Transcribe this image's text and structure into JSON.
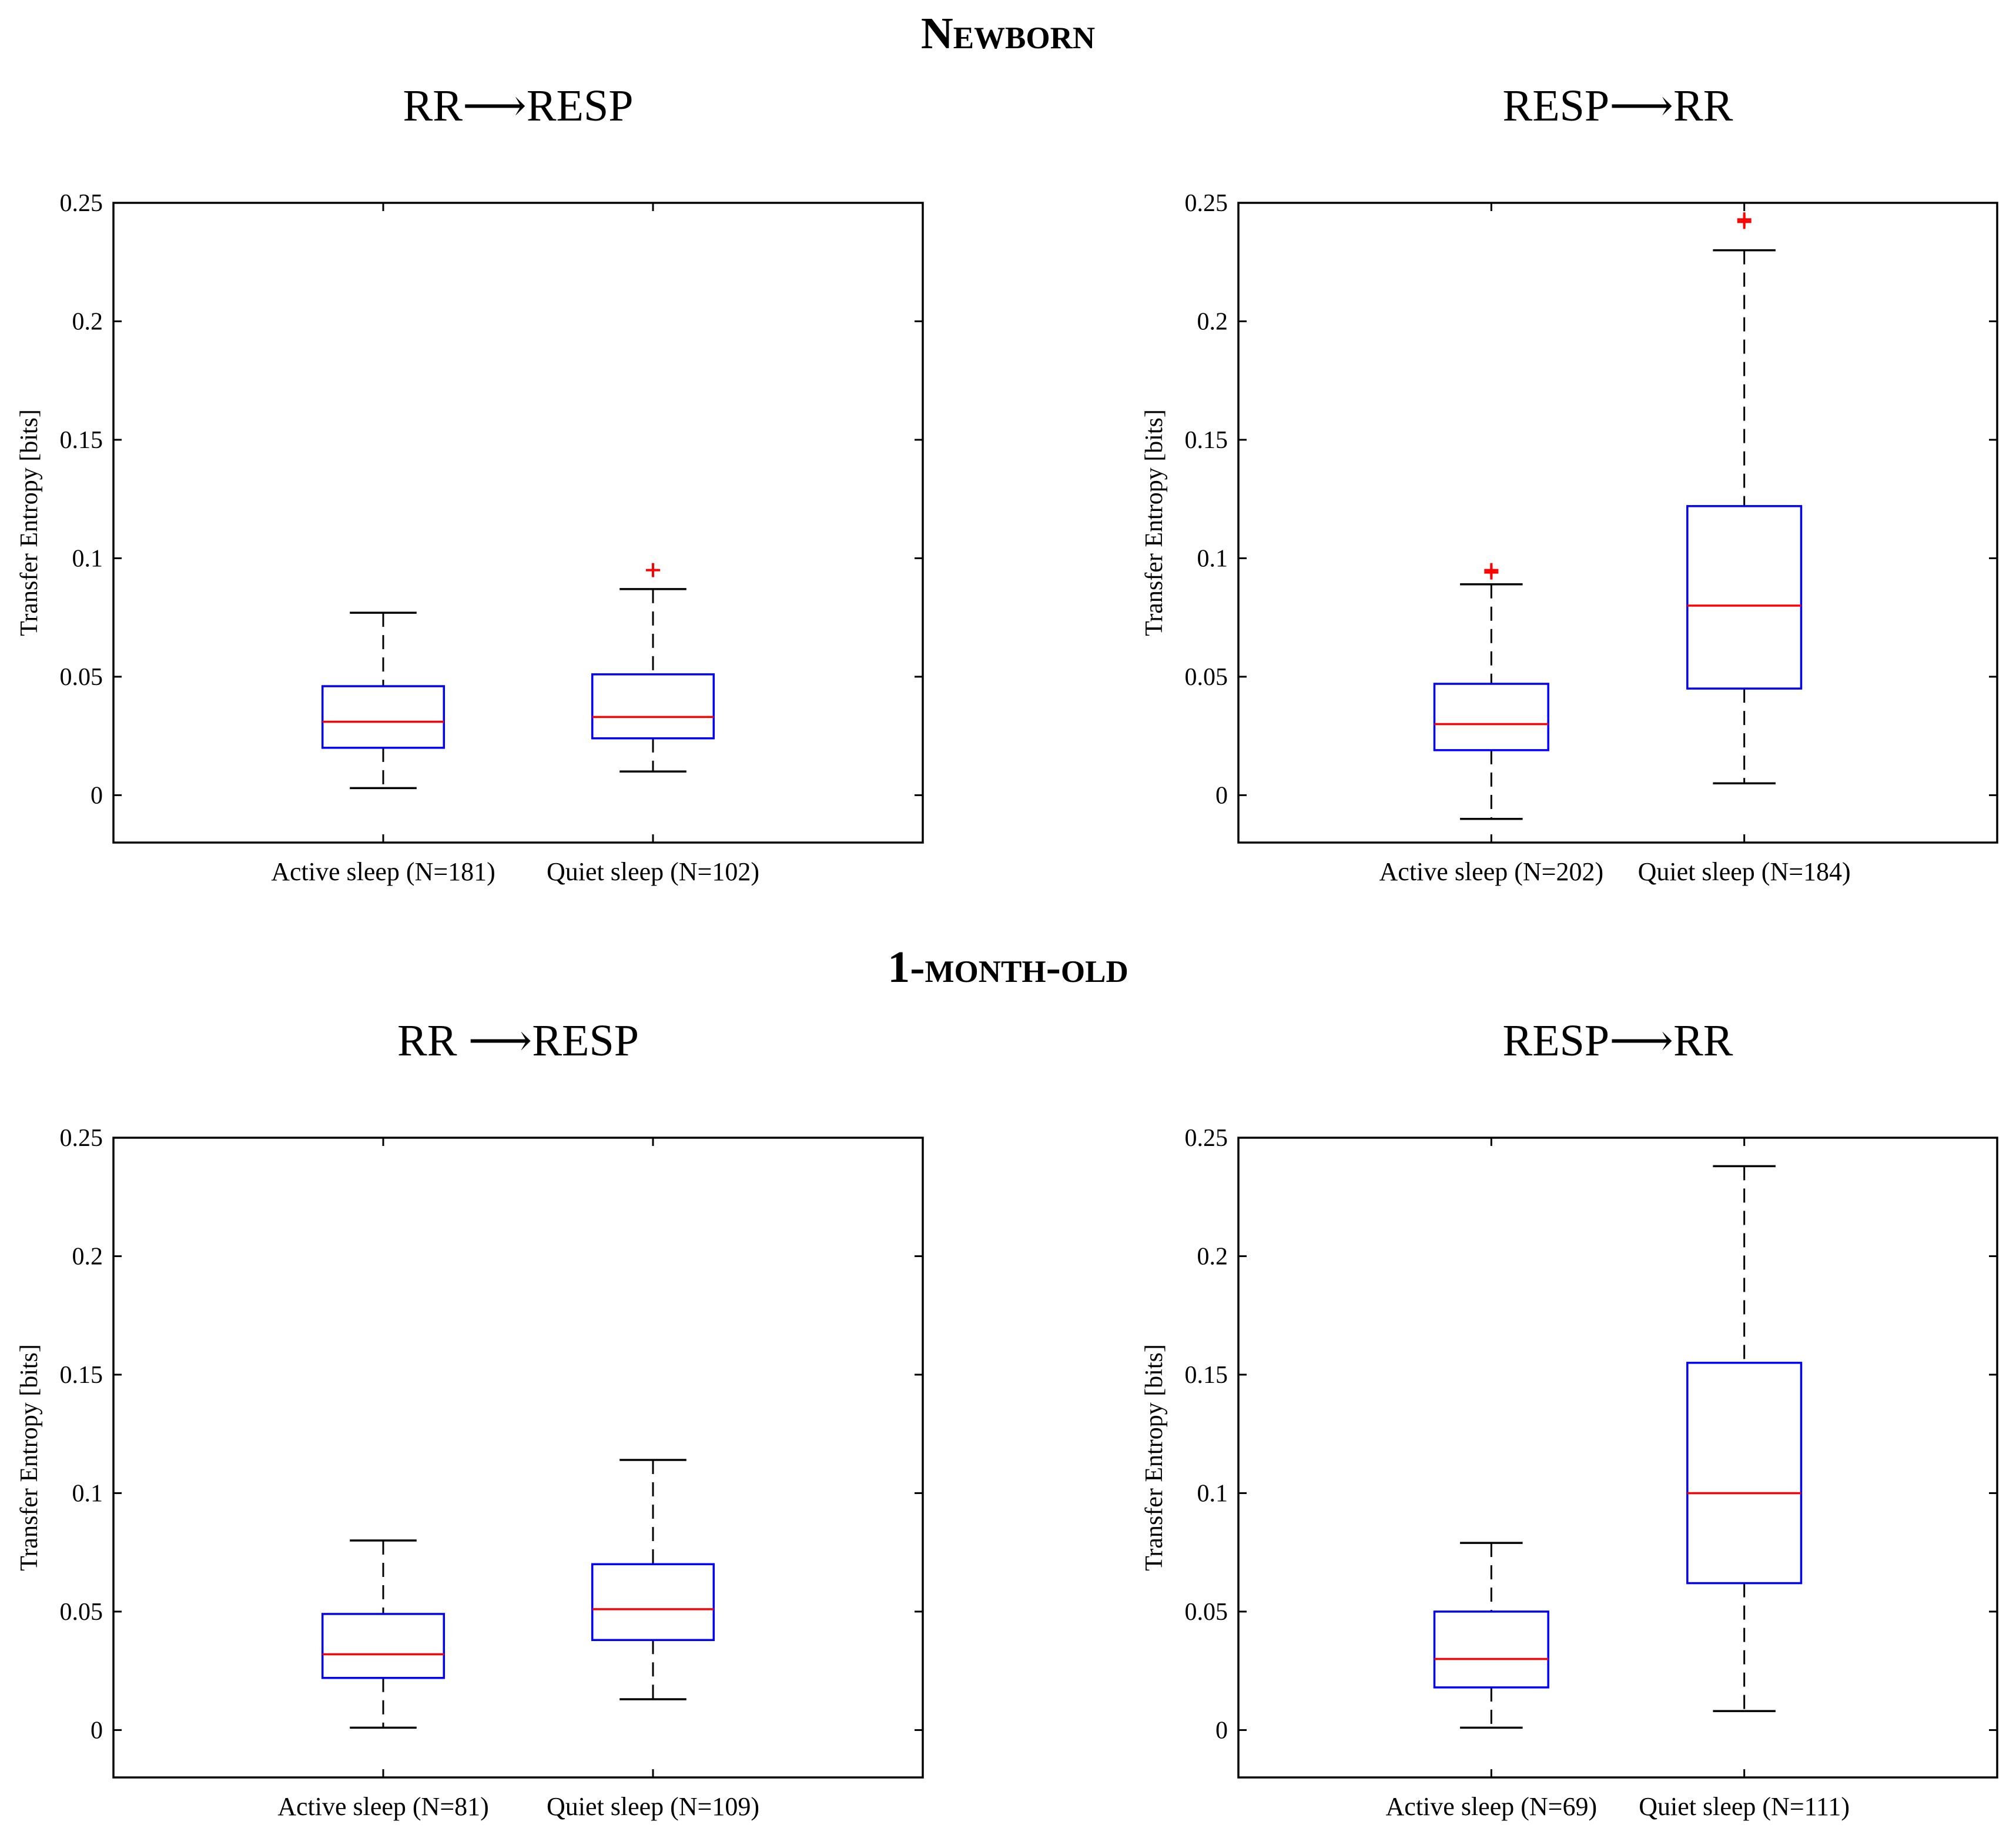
{
  "headings": {
    "newborn": "Newborn",
    "month": "1-month-old"
  },
  "colors": {
    "box": "#0000ff",
    "median": "#ff0000",
    "outlier": "#ff0000",
    "whisker": "#000000"
  },
  "chart_data": [
    {
      "type": "box",
      "group": "Newborn",
      "title": "RR⟶RESP",
      "ylabel": "Transfer Entropy [bits]",
      "ylim": [
        -0.02,
        0.25
      ],
      "yticks": [
        0,
        0.05,
        0.1,
        0.15,
        0.2,
        0.25
      ],
      "categories": [
        "Active sleep (N=181)",
        "Quiet sleep (N=102)"
      ],
      "boxes": [
        {
          "whisker_low": 0.003,
          "q1": 0.02,
          "median": 0.031,
          "q3": 0.046,
          "whisker_high": 0.077,
          "outliers": []
        },
        {
          "whisker_low": 0.01,
          "q1": 0.024,
          "median": 0.033,
          "q3": 0.051,
          "whisker_high": 0.087,
          "outliers": [
            0.095
          ]
        }
      ]
    },
    {
      "type": "box",
      "group": "Newborn",
      "title": "RESP⟶RR",
      "ylabel": "Transfer Entropy [bits]",
      "ylim": [
        -0.02,
        0.25
      ],
      "yticks": [
        0,
        0.05,
        0.1,
        0.15,
        0.2,
        0.25
      ],
      "categories": [
        "Active sleep (N=202)",
        "Quiet sleep (N=184)"
      ],
      "boxes": [
        {
          "whisker_low": -0.01,
          "q1": 0.019,
          "median": 0.03,
          "q3": 0.047,
          "whisker_high": 0.089,
          "outliers": [
            0.094,
            0.095
          ]
        },
        {
          "whisker_low": 0.005,
          "q1": 0.045,
          "median": 0.08,
          "q3": 0.122,
          "whisker_high": 0.23,
          "outliers": [
            0.242,
            0.243
          ]
        }
      ]
    },
    {
      "type": "box",
      "group": "1-month-old",
      "title": "RR ⟶RESP",
      "ylabel": "Transfer Entropy [bits]",
      "ylim": [
        -0.02,
        0.25
      ],
      "yticks": [
        0,
        0.05,
        0.1,
        0.15,
        0.2,
        0.25
      ],
      "categories": [
        "Active sleep (N=81)",
        "Quiet sleep (N=109)"
      ],
      "boxes": [
        {
          "whisker_low": 0.001,
          "q1": 0.022,
          "median": 0.032,
          "q3": 0.049,
          "whisker_high": 0.08,
          "outliers": []
        },
        {
          "whisker_low": 0.013,
          "q1": 0.038,
          "median": 0.051,
          "q3": 0.07,
          "whisker_high": 0.114,
          "outliers": []
        }
      ]
    },
    {
      "type": "box",
      "group": "1-month-old",
      "title": "RESP⟶RR",
      "ylabel": "Transfer Entropy [bits]",
      "ylim": [
        -0.02,
        0.25
      ],
      "yticks": [
        0,
        0.05,
        0.1,
        0.15,
        0.2,
        0.25
      ],
      "categories": [
        "Active sleep (N=69)",
        "Quiet sleep (N=111)"
      ],
      "boxes": [
        {
          "whisker_low": 0.001,
          "q1": 0.018,
          "median": 0.03,
          "q3": 0.05,
          "whisker_high": 0.079,
          "outliers": []
        },
        {
          "whisker_low": 0.008,
          "q1": 0.062,
          "median": 0.1,
          "q3": 0.155,
          "whisker_high": 0.238,
          "outliers": []
        }
      ]
    }
  ]
}
